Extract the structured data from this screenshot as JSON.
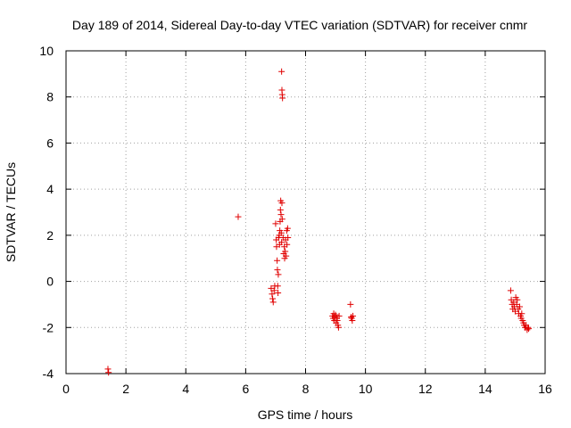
{
  "chart_data": {
    "type": "scatter",
    "title": "Day 189 of 2014, Sidereal Day-to-day VTEC variation (SDTVAR) for receiver cnmr",
    "xlabel": "GPS time / hours",
    "ylabel": "SDTVAR / TECUs",
    "xlim": [
      0,
      16
    ],
    "ylim": [
      -4,
      10
    ],
    "xticks": [
      0,
      2,
      4,
      6,
      8,
      10,
      12,
      14,
      16
    ],
    "yticks": [
      -4,
      -2,
      0,
      2,
      4,
      6,
      8,
      10
    ],
    "grid": true,
    "marker": "+",
    "color": "#e00000",
    "series": [
      {
        "name": "SDTVAR",
        "points": [
          [
            1.4,
            -3.8
          ],
          [
            1.42,
            -3.95
          ],
          [
            5.75,
            2.8
          ],
          [
            6.85,
            -0.3
          ],
          [
            6.88,
            -0.55
          ],
          [
            6.9,
            -0.75
          ],
          [
            6.92,
            -0.9
          ],
          [
            6.95,
            -0.4
          ],
          [
            6.97,
            -0.2
          ],
          [
            7.0,
            2.5
          ],
          [
            7.02,
            1.8
          ],
          [
            7.03,
            1.5
          ],
          [
            7.05,
            0.9
          ],
          [
            7.06,
            0.5
          ],
          [
            7.07,
            -0.2
          ],
          [
            7.08,
            -0.5
          ],
          [
            7.09,
            0.3
          ],
          [
            7.1,
            1.9
          ],
          [
            7.12,
            2.0
          ],
          [
            7.13,
            1.6
          ],
          [
            7.14,
            2.2
          ],
          [
            7.15,
            2.6
          ],
          [
            7.16,
            3.1
          ],
          [
            7.17,
            3.5
          ],
          [
            7.18,
            2.9
          ],
          [
            7.19,
            2.1
          ],
          [
            7.2,
            1.7
          ],
          [
            7.21,
            3.4
          ],
          [
            7.22,
            2.7
          ],
          [
            7.2,
            9.1
          ],
          [
            7.21,
            8.3
          ],
          [
            7.22,
            8.1
          ],
          [
            7.23,
            7.95
          ],
          [
            7.25,
            1.9
          ],
          [
            7.27,
            1.2
          ],
          [
            7.29,
            1.5
          ],
          [
            7.3,
            1.0
          ],
          [
            7.32,
            1.3
          ],
          [
            7.33,
            1.8
          ],
          [
            7.35,
            1.1
          ],
          [
            7.37,
            2.2
          ],
          [
            7.38,
            1.6
          ],
          [
            7.4,
            2.3
          ],
          [
            7.41,
            1.9
          ],
          [
            8.9,
            -1.5
          ],
          [
            8.92,
            -1.6
          ],
          [
            8.94,
            -1.4
          ],
          [
            8.96,
            -1.7
          ],
          [
            8.98,
            -1.55
          ],
          [
            9.0,
            -1.45
          ],
          [
            9.02,
            -1.8
          ],
          [
            9.04,
            -1.6
          ],
          [
            9.06,
            -1.7
          ],
          [
            9.08,
            -1.9
          ],
          [
            9.1,
            -2.0
          ],
          [
            9.12,
            -1.5
          ],
          [
            9.5,
            -1.0
          ],
          [
            9.52,
            -1.55
          ],
          [
            9.54,
            -1.6
          ],
          [
            9.56,
            -1.7
          ],
          [
            9.58,
            -1.5
          ],
          [
            14.85,
            -0.4
          ],
          [
            14.87,
            -0.8
          ],
          [
            14.9,
            -1.0
          ],
          [
            14.92,
            -1.2
          ],
          [
            14.95,
            -0.9
          ],
          [
            14.97,
            -1.1
          ],
          [
            15.0,
            -1.3
          ],
          [
            15.02,
            -0.7
          ],
          [
            15.05,
            -1.0
          ],
          [
            15.07,
            -0.8
          ],
          [
            15.1,
            -1.2
          ],
          [
            15.12,
            -1.4
          ],
          [
            15.15,
            -1.1
          ],
          [
            15.18,
            -1.5
          ],
          [
            15.2,
            -1.6
          ],
          [
            15.22,
            -1.4
          ],
          [
            15.25,
            -1.7
          ],
          [
            15.28,
            -1.8
          ],
          [
            15.3,
            -1.9
          ],
          [
            15.33,
            -2.0
          ],
          [
            15.36,
            -1.9
          ],
          [
            15.4,
            -2.1
          ],
          [
            15.43,
            -2.0
          ],
          [
            15.45,
            -2.05
          ]
        ]
      }
    ]
  }
}
